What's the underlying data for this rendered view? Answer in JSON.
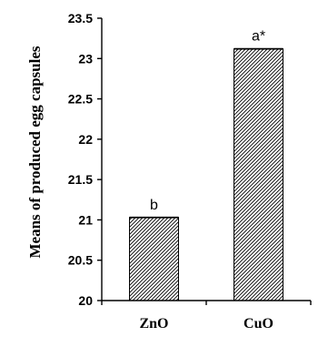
{
  "chart_data": {
    "type": "bar",
    "categories": [
      "ZnO",
      "CuO"
    ],
    "values": [
      21.03,
      23.12
    ],
    "data_labels": [
      "b",
      "a*"
    ],
    "title": "",
    "xlabel": "",
    "ylabel": "Means of produced egg capsules",
    "ylim": [
      20,
      23.5
    ],
    "yticks": [
      "20",
      "20.5",
      "21",
      "21.5",
      "22",
      "22.5",
      "23",
      "23.5"
    ],
    "ytick_values": [
      20,
      20.5,
      21,
      21.5,
      22,
      22.5,
      23,
      23.5
    ],
    "grid": false,
    "legend": "none",
    "bar_fill": "diagonal-hatch",
    "bar_color": "#000000",
    "background": "#ffffff"
  }
}
